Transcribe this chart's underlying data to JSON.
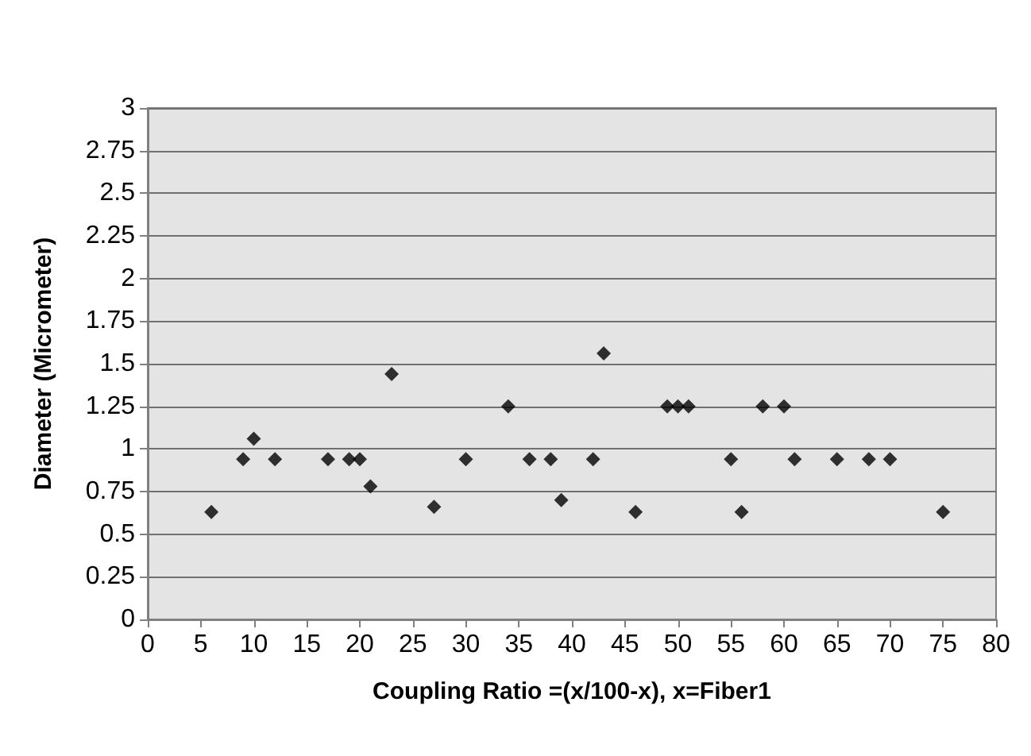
{
  "chart_data": {
    "type": "scatter",
    "xlabel": "Coupling Ratio =(x/100-x), x=Fiber1",
    "ylabel": "Diameter (Micrometer)",
    "x": [
      6,
      9,
      10,
      12,
      17,
      19,
      20,
      21,
      23,
      27,
      30,
      34,
      36,
      38,
      39,
      42,
      43,
      46,
      49,
      50,
      51,
      55,
      56,
      58,
      60,
      61,
      65,
      68,
      70,
      75
    ],
    "series": [
      {
        "color": "#000000",
        "values": [
          0.63,
          0.94,
          1.06,
          0.94,
          0.94,
          0.94,
          0.94,
          0.78,
          1.44,
          0.66,
          0.94,
          1.25,
          0.94,
          0.94,
          0.7,
          0.94,
          1.56,
          0.63,
          1.25,
          1.25,
          1.25,
          0.94,
          0.63,
          1.25,
          1.25,
          0.94,
          0.94,
          0.94,
          0.94,
          0.63
        ]
      }
    ],
    "xlim": [
      0,
      80
    ],
    "xticks": [
      0,
      5,
      10,
      15,
      20,
      25,
      30,
      35,
      40,
      45,
      50,
      55,
      60,
      65,
      70,
      75,
      80
    ],
    "ylim": [
      0,
      3
    ],
    "yticks": [
      0,
      0.25,
      0.5,
      0.75,
      1,
      1.25,
      1.5,
      1.75,
      2,
      2.25,
      2.5,
      2.75,
      3
    ],
    "grid": "y",
    "marker": "diamond"
  }
}
